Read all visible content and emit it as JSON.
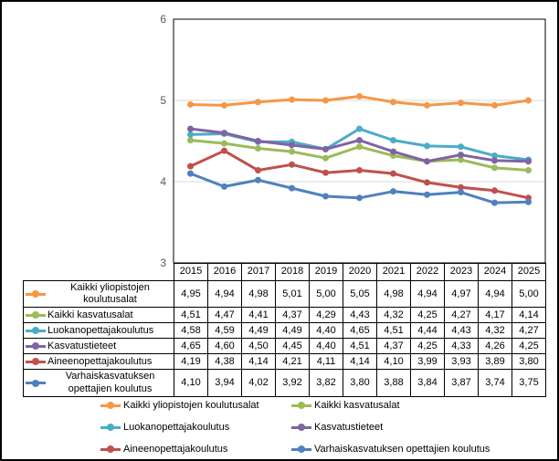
{
  "chart_data": {
    "type": "line",
    "title": "",
    "xlabel": "",
    "ylabel": "",
    "categories": [
      "2015",
      "2016",
      "2017",
      "2018",
      "2019",
      "2020",
      "2021",
      "2022",
      "2023",
      "2024",
      "2025"
    ],
    "series": [
      {
        "name": "Kaikki yliopistojen koulutusalat",
        "color": "#F79646",
        "values": [
          4.95,
          4.94,
          4.98,
          5.01,
          5.0,
          5.05,
          4.98,
          4.94,
          4.97,
          4.94,
          5.0
        ]
      },
      {
        "name": "Kaikki kasvatusalat",
        "color": "#9BBB59",
        "values": [
          4.51,
          4.47,
          4.41,
          4.37,
          4.29,
          4.43,
          4.32,
          4.25,
          4.27,
          4.17,
          4.14
        ]
      },
      {
        "name": "Luokanopettajakoulutus",
        "color": "#4BACC6",
        "values": [
          4.58,
          4.59,
          4.49,
          4.49,
          4.4,
          4.65,
          4.51,
          4.44,
          4.43,
          4.32,
          4.27
        ]
      },
      {
        "name": "Kasvatustieteet",
        "color": "#8064A2",
        "values": [
          4.65,
          4.6,
          4.5,
          4.45,
          4.4,
          4.51,
          4.37,
          4.25,
          4.33,
          4.26,
          4.25
        ]
      },
      {
        "name": "Aineenopettajakoulutus",
        "color": "#C0504D",
        "values": [
          4.19,
          4.38,
          4.14,
          4.21,
          4.11,
          4.14,
          4.1,
          3.99,
          3.93,
          3.89,
          3.8
        ]
      },
      {
        "name": "Varhaiskasvatuksen opettajien koulutus",
        "color": "#4F81BD",
        "values": [
          4.1,
          3.94,
          4.02,
          3.92,
          3.82,
          3.8,
          3.88,
          3.84,
          3.87,
          3.74,
          3.75
        ]
      }
    ],
    "ylim": [
      3,
      6
    ],
    "yticks": [
      6,
      5,
      4,
      3
    ],
    "grid": "horizontal gridlines at interior ticks (4 and 5)",
    "legend_position": "bottom, two columns, three rows",
    "legend_rows": [
      [
        0,
        1
      ],
      [
        2,
        3
      ],
      [
        4,
        5
      ]
    ],
    "data_table_attached": true,
    "decimal_separator": ",",
    "value_decimals": 2,
    "colors": {
      "plot_border": "#000000",
      "gridline": "#D9D9D9",
      "tick_label": "#595959",
      "table_border": "#000000",
      "background": "#FFFFFF"
    }
  }
}
